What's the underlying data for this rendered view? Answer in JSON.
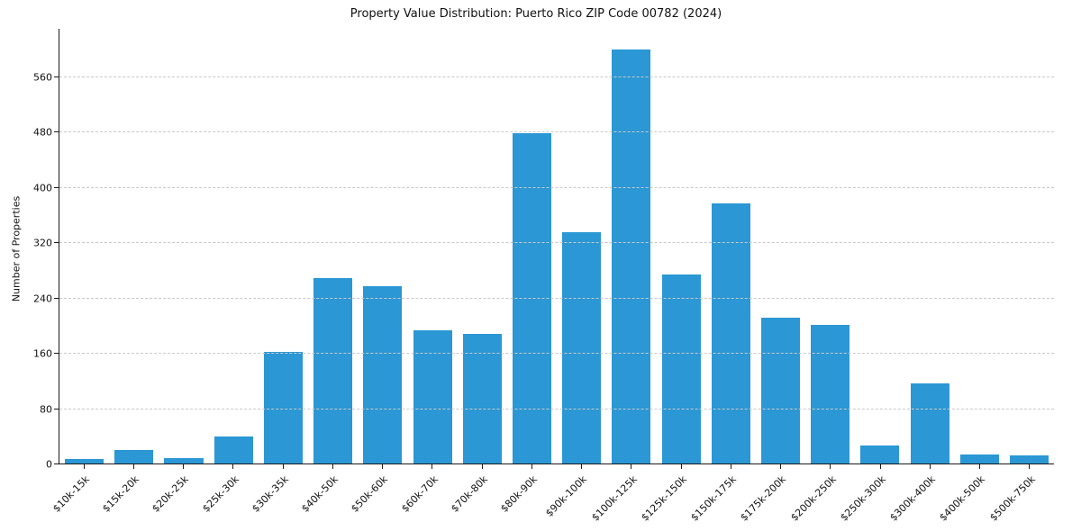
{
  "chart": {
    "title": "Property Value Distribution: Puerto Rico ZIP Code 00782 (2024)",
    "ylabel": "Number of Properties"
  },
  "chart_data": {
    "type": "bar",
    "title": "Property Value Distribution: Puerto Rico ZIP Code 00782 (2024)",
    "xlabel": "",
    "ylabel": "Number of Properties",
    "categories": [
      "$10k-15k",
      "$15k-20k",
      "$20k-25k",
      "$25k-30k",
      "$30k-35k",
      "$40k-50k",
      "$50k-60k",
      "$60k-70k",
      "$70k-80k",
      "$80k-90k",
      "$90k-100k",
      "$100k-125k",
      "$125k-150k",
      "$150k-175k",
      "$175k-200k",
      "$200k-250k",
      "$250k-300k",
      "$300k-400k",
      "$400k-500k",
      "$500k-750k"
    ],
    "values": [
      8,
      21,
      9,
      40,
      163,
      270,
      258,
      194,
      189,
      479,
      336,
      600,
      275,
      378,
      212,
      202,
      27,
      117,
      14,
      13
    ],
    "ylim": [
      0,
      630
    ],
    "yticks": [
      0,
      80,
      160,
      240,
      320,
      400,
      480,
      560
    ],
    "bar_color": "#2b97d4",
    "grid": "horizontal-dashed",
    "legend": "none"
  }
}
